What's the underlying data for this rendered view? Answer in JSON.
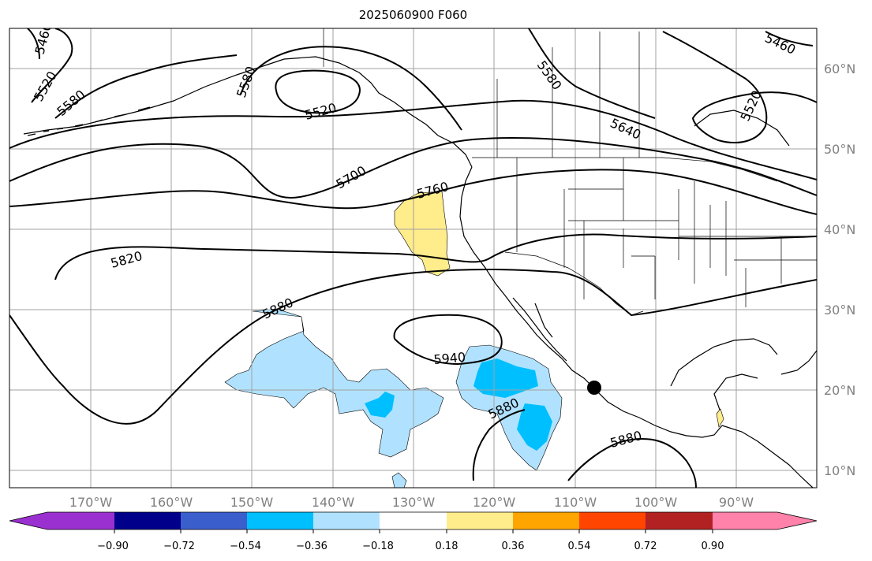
{
  "title": "2025060900 F060",
  "map": {
    "latitude_labels": [
      "60°N",
      "50°N",
      "40°N",
      "30°N",
      "20°N",
      "10°N"
    ],
    "longitude_labels": [
      "170°W",
      "160°W",
      "150°W",
      "140°W",
      "130°W",
      "120°W",
      "110°W",
      "100°W",
      "90°W"
    ],
    "contour_labels": [
      "5460",
      "5520",
      "5580",
      "5580",
      "5520",
      "5580",
      "5640",
      "5520",
      "5460",
      "5700",
      "5760",
      "5820",
      "5880",
      "5940",
      "5880",
      "5880"
    ],
    "line_color": "#000000",
    "grid_color": "#a0a0a0",
    "storm_marker_color": "#000000"
  },
  "colorbar": {
    "colors": [
      "#9b30d0",
      "#00008b",
      "#3a5fcd",
      "#00bfff",
      "#b0e2ff",
      "#ffffff",
      "#ffec8b",
      "#ffa500",
      "#ff4500",
      "#b22222",
      "#ff82ab"
    ],
    "tick_labels": [
      "−0.90",
      "−0.72",
      "−0.54",
      "−0.36",
      "−0.18",
      "0.18",
      "0.36",
      "0.54",
      "0.72",
      "0.90"
    ]
  }
}
